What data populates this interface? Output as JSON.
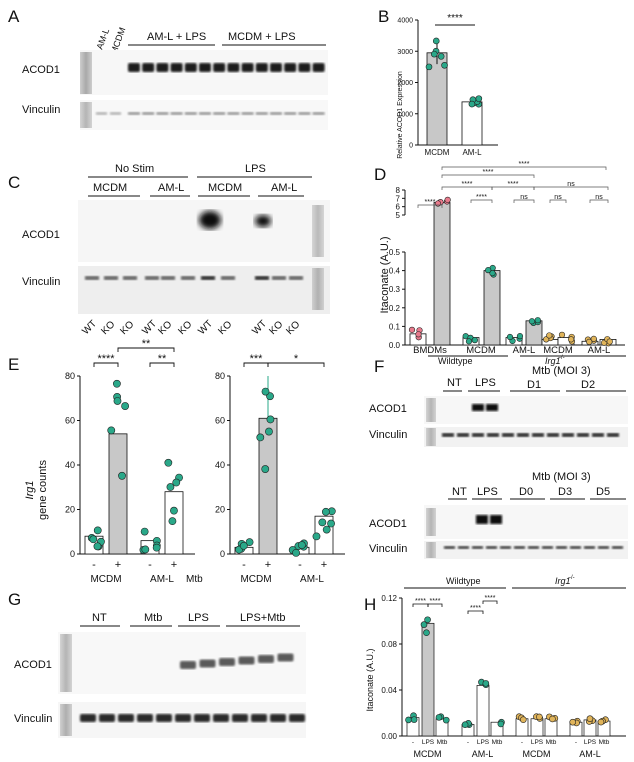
{
  "panels": {
    "A": {
      "letter": "A",
      "col_labels": [
        "AM-L",
        "MCDM"
      ],
      "groups": [
        "AM-L + LPS",
        "MCDM + LPS"
      ],
      "rows": [
        "ACOD1",
        "Vinculin"
      ]
    },
    "B": {
      "letter": "B",
      "ylabel": "Relative ACOD1 Expression",
      "yticks": [
        "0",
        "1000",
        "2000",
        "3000",
        "4000"
      ],
      "categories": [
        "MCDM",
        "AM-L"
      ],
      "sig": "****"
    },
    "C": {
      "letter": "C",
      "top_groups": [
        "No Stim",
        "LPS"
      ],
      "sub_groups": [
        "MCDM",
        "AM-L",
        "MCDM",
        "AM-L"
      ],
      "rows": [
        "ACOD1",
        "Vinculin"
      ],
      "lanes": [
        "WT",
        "KO",
        "KO",
        "WT",
        "KO",
        "KO",
        "WT",
        "KO",
        "WT",
        "KO",
        "KO"
      ]
    },
    "D": {
      "letter": "D",
      "ylabel": "Itaconate (A.U.)",
      "yticks_low": [
        "0.0",
        "0.1",
        "0.2",
        "0.3",
        "0.4",
        "0.5"
      ],
      "yticks_high": [
        "5",
        "6",
        "7",
        "8"
      ],
      "categories": [
        "BMDMs",
        "MCDM",
        "AM-L",
        "MCDM",
        "AM-L"
      ],
      "group_wt": "Wildtype",
      "group_ko": "Irg1",
      "group_ko_sup": "-/-",
      "sig": [
        "****",
        "****",
        "****",
        "****",
        "****",
        "****",
        "ns",
        "ns",
        "ns",
        "ns",
        "ns",
        "ns"
      ]
    },
    "E": {
      "letter": "E",
      "ylabel_gene": "Irg1",
      "ylabel": "gene counts",
      "yticks_left": [
        "0",
        "20",
        "40",
        "60",
        "80"
      ],
      "yticks_right": [
        "0",
        "20",
        "40",
        "60",
        "80"
      ],
      "signs": [
        "-",
        "+",
        "-",
        "+"
      ],
      "mtb": "Mtb",
      "categories": [
        "MCDM",
        "AM-L"
      ],
      "sig_left": [
        "****",
        "**",
        "**"
      ],
      "sig_right": [
        "***",
        "*"
      ]
    },
    "F": {
      "letter": "F",
      "top": {
        "lanes": [
          "NT",
          "LPS"
        ],
        "mtb": "Mtb (MOI 3)",
        "days": [
          "D1",
          "D2"
        ]
      },
      "bottom": {
        "lanes": [
          "NT",
          "LPS"
        ],
        "mtb": "Mtb (MOI 3)",
        "days": [
          "D0",
          "D3",
          "D5"
        ]
      },
      "rows": [
        "ACOD1",
        "Vinculin"
      ]
    },
    "G": {
      "letter": "G",
      "groups": [
        "NT",
        "Mtb",
        "LPS",
        "LPS+Mtb"
      ],
      "rows": [
        "ACOD1",
        "Vinculin"
      ]
    },
    "H": {
      "letter": "H",
      "ylabel": "Itaconate (A.U.)",
      "yticks": [
        "0.00",
        "0.04",
        "0.08",
        "0.12"
      ],
      "group_wt": "Wildtype",
      "group_ko": "Irg1",
      "group_ko_sup": "-/-",
      "x_sub": [
        "-",
        "LPS",
        "Mtb"
      ],
      "categories": [
        "MCDM",
        "AM-L",
        "MCDM",
        "AM-L"
      ],
      "sig": [
        "****",
        "****",
        "****",
        "****"
      ]
    }
  },
  "colors": {
    "teal": "#2aa889",
    "gray_bar": "#c8c8c8",
    "pink": "#e87a8c",
    "gold": "#e0b45a"
  },
  "chart_data": [
    {
      "type": "bar",
      "panel": "B",
      "categories": [
        "MCDM",
        "AM-L"
      ],
      "values": [
        2950,
        1380
      ],
      "ylim": [
        0,
        4000
      ]
    },
    {
      "type": "bar",
      "panel": "D",
      "categories": [
        "BMDMs -",
        "BMDMs LPS",
        "WT MCDM -",
        "WT MCDM LPS",
        "WT AM-L -",
        "WT AM-L LPS",
        "KO MCDM -",
        "KO MCDM LPS",
        "KO AM-L -",
        "KO AM-L LPS"
      ],
      "values": [
        0.06,
        6.5,
        0.04,
        0.4,
        0.04,
        0.13,
        0.03,
        0.04,
        0.02,
        0.03
      ],
      "ylim": [
        0,
        8
      ]
    },
    {
      "type": "bar",
      "panel": "E-left",
      "categories": [
        "MCDM -",
        "MCDM +",
        "AM-L -",
        "AM-L +"
      ],
      "values": [
        8,
        54,
        6,
        28
      ],
      "ylim": [
        0,
        80
      ]
    },
    {
      "type": "bar",
      "panel": "E-right",
      "categories": [
        "MCDM -",
        "MCDM +",
        "AM-L -",
        "AM-L +"
      ],
      "values": [
        3,
        61,
        3,
        17
      ],
      "ylim": [
        0,
        80
      ]
    },
    {
      "type": "bar",
      "panel": "H",
      "categories": [
        "WT MCDM -",
        "WT MCDM LPS",
        "WT MCDM Mtb",
        "WT AM-L -",
        "WT AM-L LPS",
        "WT AM-L Mtb",
        "KO MCDM -",
        "KO MCDM LPS",
        "KO MCDM Mtb",
        "KO AM-L -",
        "KO AM-L LPS",
        "KO AM-L Mtb"
      ],
      "values": [
        0.016,
        0.098,
        0.015,
        0.01,
        0.044,
        0.012,
        0.015,
        0.015,
        0.015,
        0.012,
        0.014,
        0.013
      ],
      "ylim": [
        0,
        0.12
      ]
    }
  ]
}
